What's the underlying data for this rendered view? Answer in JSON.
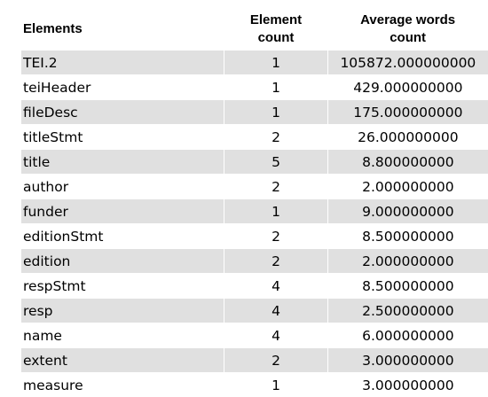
{
  "table": {
    "headers": {
      "elements": "Elements",
      "count_line1": "Element",
      "count_line2": "count",
      "avg_line1": "Average words",
      "avg_line2": "count"
    },
    "rows": [
      {
        "element": "TEI.2",
        "count": "1",
        "avg": "105872.000000000",
        "shaded": true
      },
      {
        "element": "teiHeader",
        "count": "1",
        "avg": "429.000000000",
        "shaded": false
      },
      {
        "element": "fileDesc",
        "count": "1",
        "avg": "175.000000000",
        "shaded": true
      },
      {
        "element": "titleStmt",
        "count": "2",
        "avg": "26.000000000",
        "shaded": false
      },
      {
        "element": "title",
        "count": "5",
        "avg": "8.800000000",
        "shaded": true
      },
      {
        "element": "author",
        "count": "2",
        "avg": "2.000000000",
        "shaded": false
      },
      {
        "element": "funder",
        "count": "1",
        "avg": "9.000000000",
        "shaded": true
      },
      {
        "element": "editionStmt",
        "count": "2",
        "avg": "8.500000000",
        "shaded": false
      },
      {
        "element": "edition",
        "count": "2",
        "avg": "2.000000000",
        "shaded": true
      },
      {
        "element": "respStmt",
        "count": "4",
        "avg": "8.500000000",
        "shaded": false
      },
      {
        "element": "resp",
        "count": "4",
        "avg": "2.500000000",
        "shaded": true
      },
      {
        "element": "name",
        "count": "4",
        "avg": "6.000000000",
        "shaded": false
      },
      {
        "element": "extent",
        "count": "2",
        "avg": "3.000000000",
        "shaded": true
      },
      {
        "element": "measure",
        "count": "1",
        "avg": "3.000000000",
        "shaded": false
      }
    ],
    "shade_color": "#e0e0e0"
  }
}
